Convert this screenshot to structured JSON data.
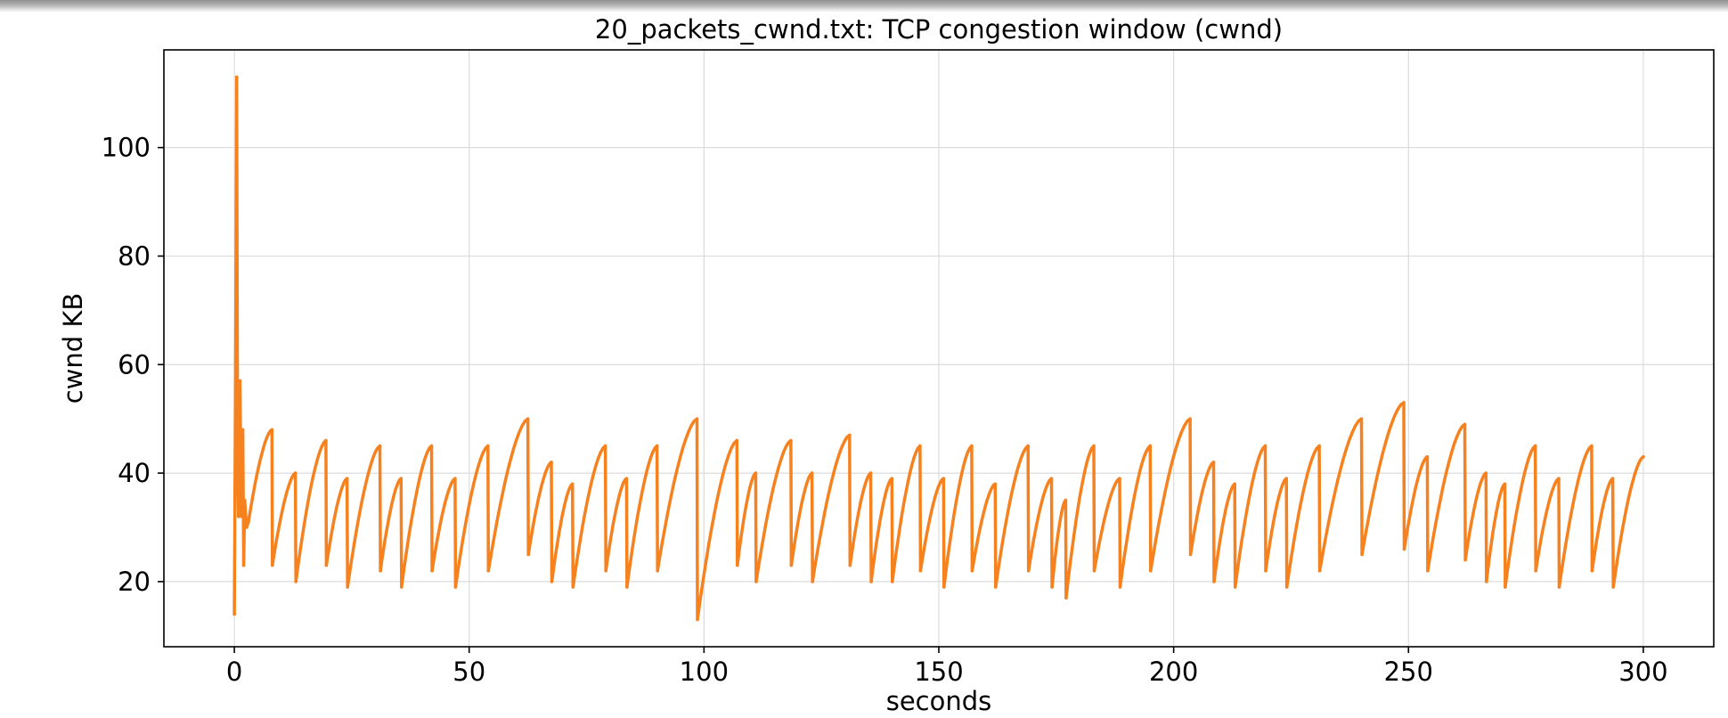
{
  "chart_data": {
    "type": "line",
    "title": "20_packets_cwnd.txt: TCP congestion window (cwnd)",
    "xlabel": "seconds",
    "ylabel": "cwnd KB",
    "xlim": [
      -15,
      315
    ],
    "ylim": [
      8,
      118
    ],
    "xticks": [
      0,
      50,
      100,
      150,
      200,
      250,
      300
    ],
    "yticks": [
      20,
      40,
      60,
      80,
      100
    ],
    "grid": true,
    "legend": "none",
    "series": [
      {
        "color": "#f5811f",
        "x": [
          0,
          0.3,
          0.5,
          0.7,
          0.9,
          1.2,
          1.5,
          1.8,
          2.0,
          2.2,
          2.6,
          3.0,
          8.0,
          8.1,
          13.0,
          13.1,
          19.5,
          19.6,
          24.0,
          24.1,
          31.0,
          31.1,
          35.5,
          35.6,
          42.0,
          42.1,
          47.0,
          47.1,
          54.0,
          54.1,
          62.5,
          62.6,
          67.5,
          67.6,
          72.0,
          72.1,
          79.0,
          79.1,
          83.5,
          83.6,
          90.0,
          90.1,
          98.5,
          98.6,
          107.0,
          107.1,
          111.0,
          111.1,
          118.5,
          118.6,
          123.0,
          123.1,
          131.0,
          131.1,
          135.5,
          135.6,
          140.0,
          140.1,
          146.0,
          146.1,
          151.0,
          151.1,
          157.0,
          157.1,
          162.0,
          162.1,
          169.0,
          169.1,
          174.0,
          174.1,
          177.0,
          177.1,
          183.0,
          183.1,
          188.5,
          188.6,
          195.0,
          195.1,
          203.5,
          203.6,
          208.5,
          208.6,
          213.0,
          213.1,
          219.5,
          219.6,
          224.0,
          224.1,
          231.0,
          231.1,
          240.0,
          240.1,
          249.0,
          249.1,
          254.0,
          254.1,
          262.0,
          262.1,
          266.5,
          266.6,
          270.5,
          270.6,
          277.0,
          277.1,
          282.0,
          282.1,
          289.0,
          289.1,
          293.5,
          293.6,
          300.0
        ],
        "y": [
          14,
          68,
          113,
          40,
          32,
          57,
          32,
          48,
          23,
          35,
          30,
          31,
          48,
          23,
          40,
          20,
          46,
          23,
          39,
          19,
          45,
          22,
          39,
          19,
          45,
          22,
          39,
          19,
          45,
          22,
          50,
          25,
          42,
          20,
          38,
          19,
          45,
          22,
          39,
          19,
          45,
          22,
          50,
          13,
          46,
          23,
          40,
          20,
          46,
          23,
          40,
          20,
          47,
          23,
          40,
          20,
          39,
          20,
          45,
          22,
          39,
          19,
          45,
          22,
          38,
          19,
          45,
          22,
          39,
          19,
          35,
          17,
          45,
          22,
          39,
          19,
          45,
          22,
          50,
          25,
          42,
          20,
          38,
          19,
          45,
          22,
          39,
          19,
          45,
          22,
          50,
          25,
          53,
          26,
          43,
          22,
          49,
          24,
          40,
          20,
          38,
          19,
          45,
          22,
          39,
          19,
          45,
          22,
          39,
          19,
          43
        ]
      }
    ]
  }
}
